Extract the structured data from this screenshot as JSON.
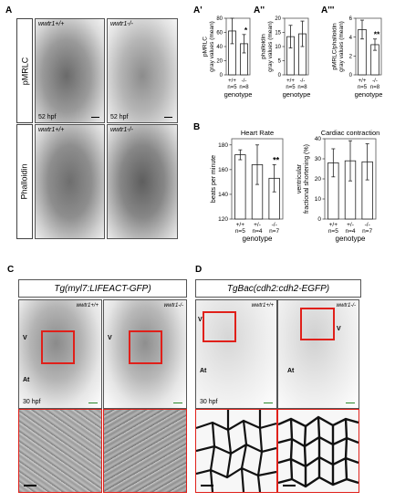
{
  "panels": {
    "A": "A",
    "A1": "A'",
    "A2": "A''",
    "A3": "A'''",
    "B": "B",
    "C": "C",
    "D": "D"
  },
  "panelA": {
    "row_labels": [
      "pMRLC",
      "Phalloidin"
    ],
    "genotypes": [
      "wwtr1+/+",
      "wwtr1-/-"
    ],
    "time": "52 hpf"
  },
  "panelC": {
    "title": "Tg(myl7:LIFEACT-GFP)",
    "genotypes": [
      "wwtr1+/+",
      "wwtr1-/-"
    ],
    "v_label": "V",
    "at_label": "At",
    "time": "30 hpf"
  },
  "panelD": {
    "title": "TgBac(cdh2:cdh2-EGFP)",
    "genotypes": [
      "wwtr1+/+",
      "wwtr1-/-"
    ],
    "v_label": "V",
    "at_label": "At",
    "time": "30 hpf"
  },
  "colors": {
    "roi_box": "#e0201a",
    "scale_bar_green": "#2d8a2d",
    "bar_fill": "#ffffff"
  },
  "chart_data": [
    {
      "type": "bar",
      "id": "A1",
      "ylabel": "pMRLC\ngray values (mean)",
      "xlabel": "genotype",
      "categories": [
        "+/+",
        "-/-"
      ],
      "n_labels": [
        "n=5",
        "n=8"
      ],
      "values": [
        62,
        44
      ],
      "errors": [
        18,
        13
      ],
      "ylim": [
        0,
        80
      ],
      "yticks": [
        0,
        20,
        40,
        60,
        80
      ],
      "annotations": [
        {
          "category": "-/-",
          "text": "*"
        }
      ]
    },
    {
      "type": "bar",
      "id": "A2",
      "ylabel": "phalloidin\ngray values (mean)",
      "xlabel": "genotype",
      "categories": [
        "+/+",
        "-/-"
      ],
      "n_labels": [
        "n=5",
        "n=8"
      ],
      "values": [
        13.5,
        14.5
      ],
      "errors": [
        4,
        4.5
      ],
      "ylim": [
        0,
        20
      ],
      "yticks": [
        0,
        5,
        10,
        15,
        20
      ],
      "annotations": []
    },
    {
      "type": "bar",
      "id": "A3",
      "ylabel": "pMRLC/phalloidin\ngray values (mean)",
      "xlabel": "genotype",
      "categories": [
        "+/+",
        "-/-"
      ],
      "n_labels": [
        "n=5",
        "n=8"
      ],
      "values": [
        4.8,
        3.2
      ],
      "errors": [
        1.0,
        0.6
      ],
      "ylim": [
        0,
        6
      ],
      "yticks": [
        0,
        2,
        4,
        6
      ],
      "annotations": [
        {
          "category": "-/-",
          "text": "**"
        }
      ]
    },
    {
      "type": "bar",
      "id": "B1",
      "title": "Heart Rate",
      "ylabel": "beats per minute",
      "xlabel": "genotype",
      "categories": [
        "+/+",
        "+/-",
        "-/-"
      ],
      "n_labels": [
        "n=5",
        "n=4",
        "n=7"
      ],
      "values": [
        172,
        164,
        153
      ],
      "errors": [
        4,
        16,
        11
      ],
      "ylim": [
        120,
        185
      ],
      "yticks": [
        120,
        140,
        160,
        180
      ],
      "annotations": [
        {
          "category": "-/-",
          "text": "**"
        }
      ]
    },
    {
      "type": "bar",
      "id": "B2",
      "title": "Cardiac contraction",
      "ylabel": "ventricular\nfractional shortening (%)",
      "xlabel": "genotype",
      "categories": [
        "+/+",
        "+/-",
        "-/-"
      ],
      "n_labels": [
        "n=5",
        "n=4",
        "n=7"
      ],
      "values": [
        28,
        29,
        28.5
      ],
      "errors": [
        7,
        10,
        9
      ],
      "ylim": [
        0,
        40
      ],
      "yticks": [
        0,
        10,
        20,
        30,
        40
      ],
      "annotations": []
    }
  ]
}
